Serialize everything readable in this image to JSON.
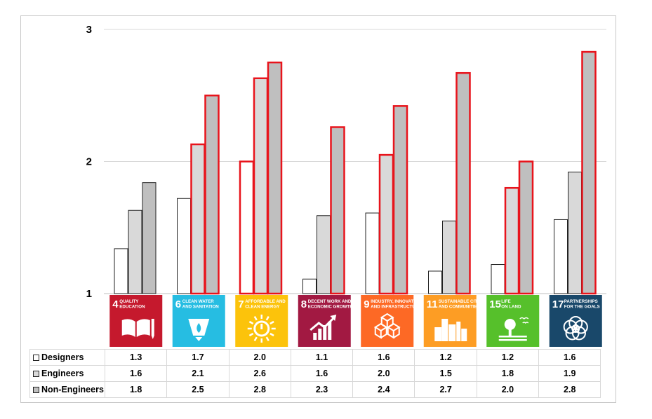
{
  "chart_data": {
    "type": "bar",
    "yticks": [
      "1",
      "2",
      "3"
    ],
    "ylim": [
      1,
      3
    ],
    "grid": true,
    "categories": [
      {
        "number": "4",
        "label": [
          "QUALITY",
          "EDUCATION"
        ],
        "color": "#c5192d",
        "icon": "book-pencil-icon"
      },
      {
        "number": "6",
        "label": [
          "CLEAN WATER",
          "AND SANITATION"
        ],
        "color": "#26bde2",
        "icon": "water-drop-glass-icon"
      },
      {
        "number": "7",
        "label": [
          "AFFORDABLE AND",
          "CLEAN ENERGY"
        ],
        "color": "#fcc30b",
        "icon": "sun-power-icon"
      },
      {
        "number": "8",
        "label": [
          "DECENT WORK AND",
          "ECONOMIC GROWTH"
        ],
        "color": "#a21942",
        "icon": "growth-chart-icon"
      },
      {
        "number": "9",
        "label": [
          "INDUSTRY, INNOVATION",
          "AND INFRASTRUCTURE"
        ],
        "color": "#fd6925",
        "icon": "stacked-cubes-icon"
      },
      {
        "number": "11",
        "label": [
          "SUSTAINABLE CITIES",
          "AND COMMUNITIES"
        ],
        "color": "#fd9d24",
        "icon": "city-buildings-icon"
      },
      {
        "number": "15",
        "label": [
          "LIFE",
          "ON LAND"
        ],
        "color": "#56c02b",
        "icon": "tree-birds-icon"
      },
      {
        "number": "17",
        "label": [
          "PARTNERSHIPS",
          "FOR THE GOALS"
        ],
        "color": "#19486a",
        "icon": "interlinked-rings-icon"
      }
    ],
    "series": [
      {
        "name": "Designers",
        "fill": "#ffffff",
        "values": [
          1.34,
          1.72,
          2.0,
          1.11,
          1.61,
          1.17,
          1.22,
          1.56
        ],
        "labels": [
          "1.3",
          "1.7",
          "2.0",
          "1.1",
          "1.6",
          "1.2",
          "1.2",
          "1.6"
        ]
      },
      {
        "name": "Engineers",
        "fill": "#d9d9d9",
        "values": [
          1.63,
          2.13,
          2.63,
          1.59,
          2.05,
          1.55,
          1.8,
          1.92
        ],
        "labels": [
          "1.6",
          "2.1",
          "2.6",
          "1.6",
          "2.0",
          "1.5",
          "1.8",
          "1.9"
        ]
      },
      {
        "name": "Non-Engineers",
        "fill": "#bfbfbf",
        "values": [
          1.84,
          2.5,
          2.75,
          2.26,
          2.42,
          2.67,
          2.0,
          2.83
        ],
        "labels": [
          "1.8",
          "2.5",
          "2.8",
          "2.3",
          "2.4",
          "2.7",
          "2.0",
          "2.8"
        ]
      }
    ],
    "highlight_color": "#e8141c",
    "highlighted": [
      [
        false,
        false,
        false
      ],
      [
        false,
        true,
        true
      ],
      [
        true,
        true,
        true
      ],
      [
        false,
        false,
        true
      ],
      [
        false,
        true,
        true
      ],
      [
        false,
        false,
        true
      ],
      [
        false,
        true,
        true
      ],
      [
        false,
        false,
        true
      ]
    ]
  }
}
